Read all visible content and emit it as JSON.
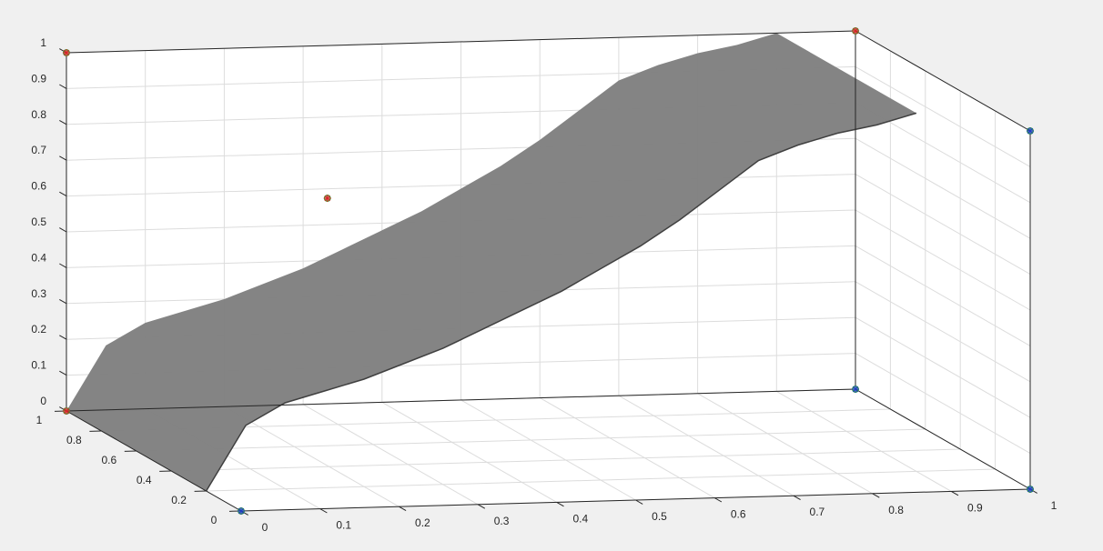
{
  "colors": {
    "figure_bg": "#f0f0f0",
    "axes_bg": "#ffffff",
    "grid": "#dcdcdc",
    "box": "#262626",
    "surface_fill": "#808080",
    "surface_edge": "#404040",
    "marker_red": "#d62728",
    "marker_green": "#2ca02c",
    "marker_blue": "#1f3fbf"
  },
  "chart_data": {
    "type": "surface",
    "title": "",
    "xlabel": "",
    "ylabel": "",
    "zlabel": "",
    "grid": true,
    "xlim": [
      0,
      1
    ],
    "ylim": [
      0,
      1
    ],
    "zlim": [
      0,
      1
    ],
    "x_ticks": [
      "0",
      "0.1",
      "0.2",
      "0.3",
      "0.4",
      "0.5",
      "0.6",
      "0.7",
      "0.8",
      "0.9",
      "1"
    ],
    "y_ticks": [
      "0",
      "0.2",
      "0.4",
      "0.6",
      "0.8",
      "1"
    ],
    "z_ticks": [
      "0",
      "0.1",
      "0.2",
      "0.3",
      "0.4",
      "0.5",
      "0.6",
      "0.7",
      "0.8",
      "0.9",
      "1"
    ],
    "surface": {
      "description_values": "sheet z = f(x) over y from 0.2 to 1",
      "x": [
        0.0,
        0.05,
        0.1,
        0.15,
        0.2,
        0.25,
        0.3,
        0.35,
        0.4,
        0.45,
        0.5,
        0.55,
        0.6,
        0.65,
        0.7,
        0.75,
        0.8,
        0.85,
        0.9
      ],
      "z": [
        0.0,
        0.18,
        0.24,
        0.27,
        0.3,
        0.34,
        0.38,
        0.43,
        0.48,
        0.53,
        0.59,
        0.65,
        0.72,
        0.8,
        0.88,
        0.92,
        0.95,
        0.97,
        1.0
      ],
      "y_range": [
        0.2,
        1.0
      ],
      "opacity": 0.5
    },
    "markers": [
      {
        "x": 0,
        "y": 1,
        "z": 1,
        "style": "red-green-asterisk"
      },
      {
        "x": 1,
        "y": 1,
        "z": 1,
        "style": "red-green-asterisk"
      },
      {
        "x": 0,
        "y": 1,
        "z": 0,
        "style": "red-green-asterisk"
      },
      {
        "x": 0.22,
        "y": 0.5,
        "z": 0.72,
        "style": "red-green-asterisk"
      },
      {
        "x": 0,
        "y": 0,
        "z": 0,
        "style": "blue-green-asterisk"
      },
      {
        "x": 1,
        "y": 0,
        "z": 0,
        "style": "blue-green-asterisk"
      },
      {
        "x": 1,
        "y": 1,
        "z": 0,
        "style": "blue-green-asterisk"
      },
      {
        "x": 1,
        "y": 0,
        "z": 1,
        "style": "blue-green-asterisk"
      }
    ]
  }
}
